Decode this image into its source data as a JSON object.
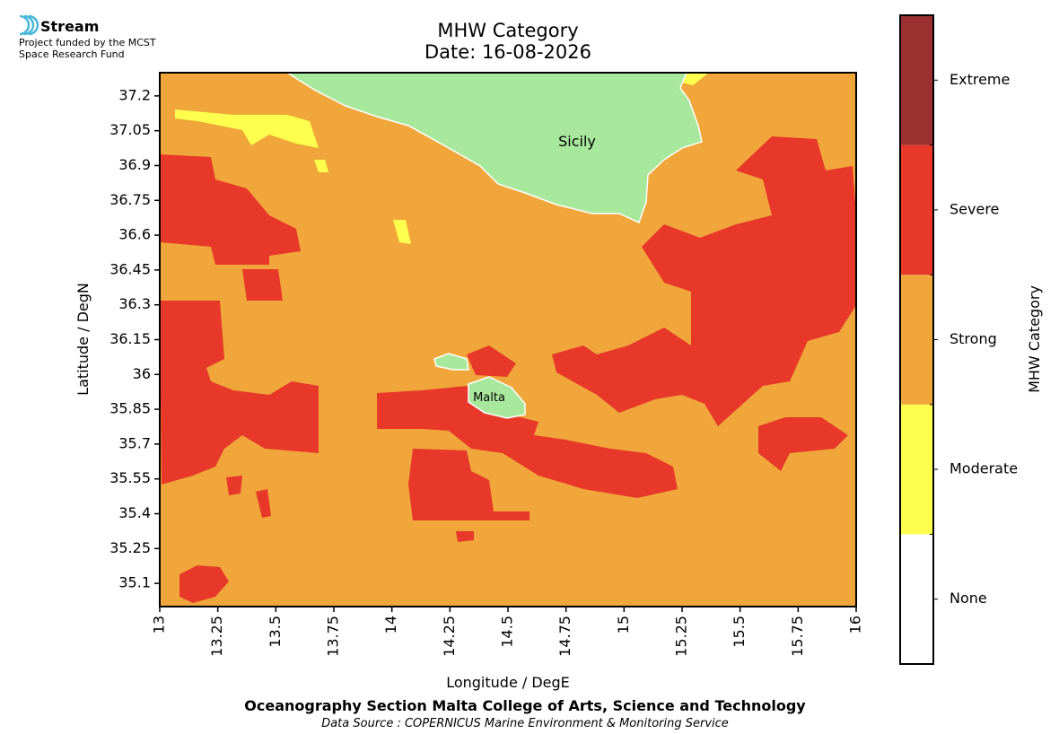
{
  "logo": {
    "name": "Stream",
    "lines": [
      "Project funded by the MCST",
      "Space Research Fund"
    ]
  },
  "chart_data": {
    "type": "map",
    "title": [
      "MHW Category",
      "Date: 16-08-2026"
    ],
    "xlabel": "Longitude / DegE",
    "ylabel": "Latitude / DegN",
    "xlim": [
      13,
      16
    ],
    "ylim": [
      35.0,
      37.3
    ],
    "xticks": [
      13,
      13.25,
      13.5,
      13.75,
      14,
      14.25,
      14.5,
      14.75,
      15,
      15.25,
      15.5,
      15.75,
      16
    ],
    "yticks": [
      35.1,
      35.25,
      35.4,
      35.55,
      35.7,
      35.85,
      36,
      36.15,
      36.3,
      36.45,
      36.6,
      36.75,
      36.9,
      37.05,
      37.2
    ],
    "annotations": [
      "Sicily",
      "Malta"
    ],
    "colorbar": {
      "label": "MHW Category",
      "categories": [
        "None",
        "Moderate",
        "Strong",
        "Severe",
        "Extreme"
      ],
      "colors": [
        "#ffffff",
        "#ffff4d",
        "#f0a63a",
        "#e8382a",
        "#9b3030"
      ]
    }
  },
  "footer": {
    "institution": "Oceanography Section Malta College of Arts,  Science and Technology",
    "source": "Data Source : COPERNICUS Marine Environment & Monitoring Service"
  }
}
